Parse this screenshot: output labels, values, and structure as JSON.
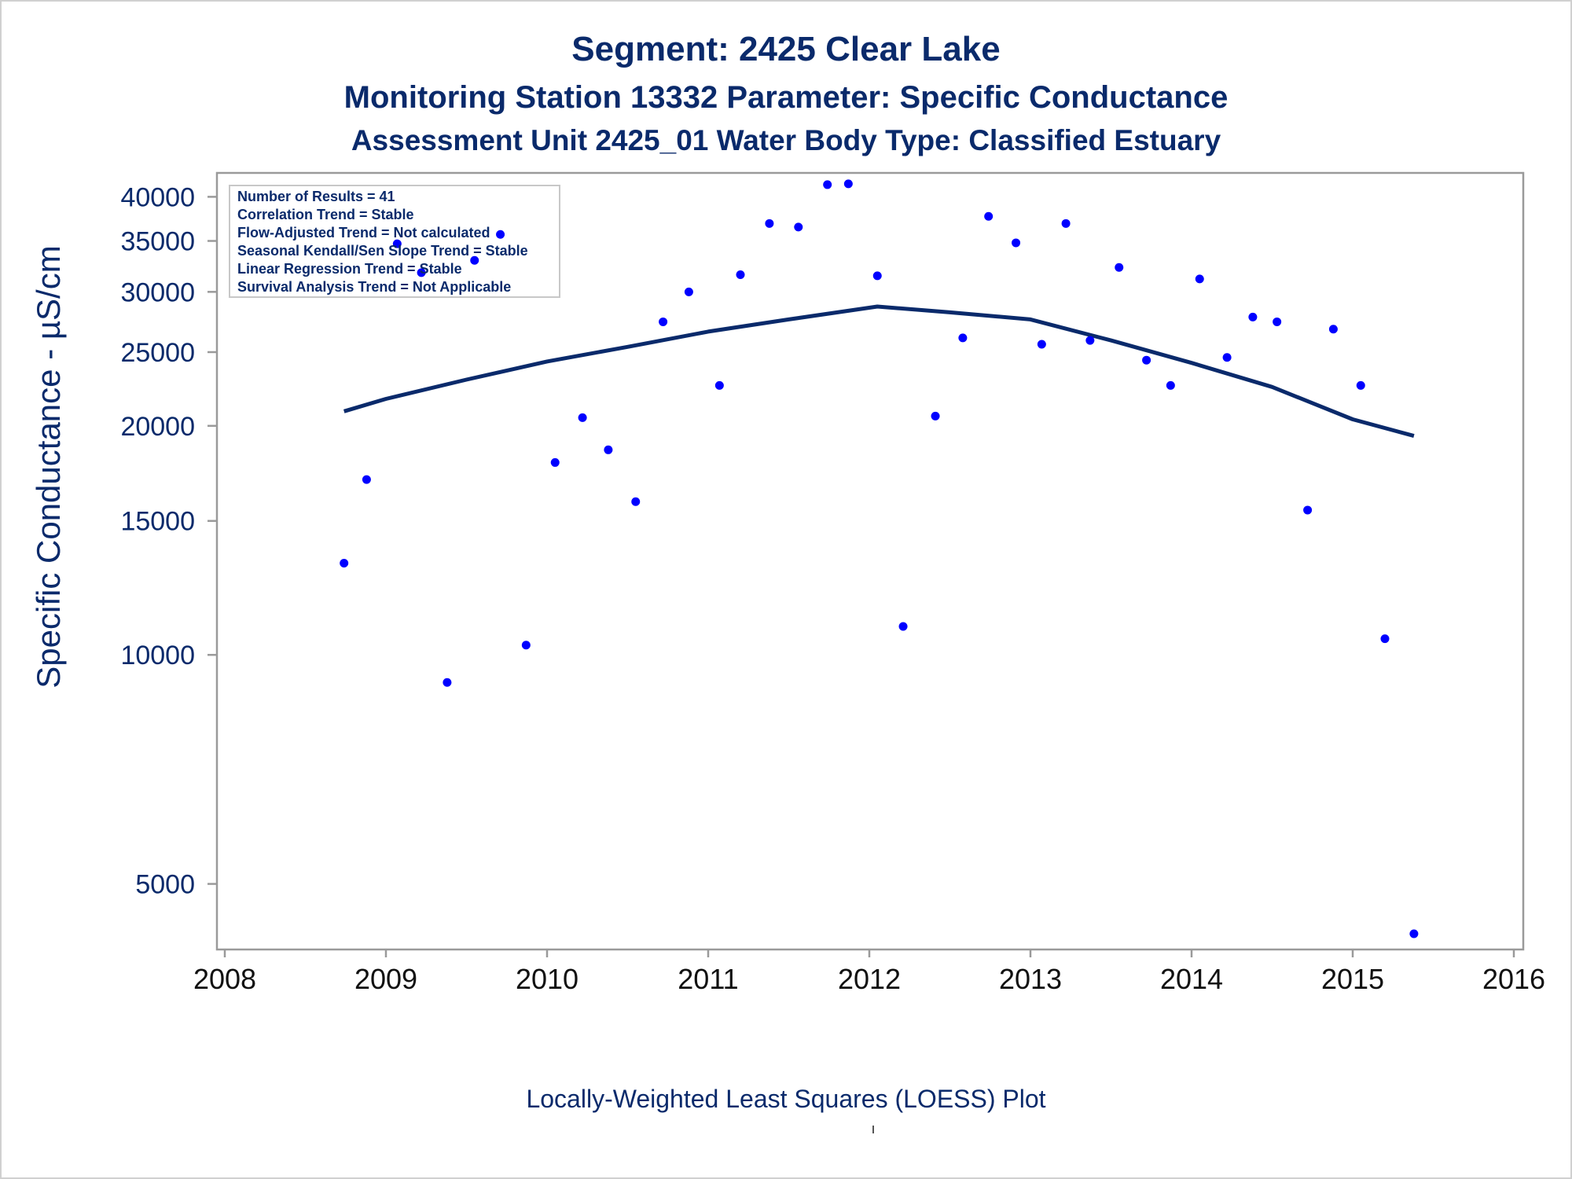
{
  "titles": {
    "line1": "Segment: 2425  Clear Lake",
    "line2": "Monitoring Station 13332 Parameter: Specific Conductance",
    "line3": "Assessment Unit 2425_01   Water Body Type: Classified Estuary"
  },
  "footnote": "Locally-Weighted Least Squares (LOESS) Plot",
  "colors": {
    "text": "#0a2a6b",
    "points": "#0000ff",
    "loess": "#0a2a6b",
    "axis": "#9a9a9a"
  },
  "chart_data": {
    "type": "scatter",
    "ylabel": "Specific Conductance -  µS/cm",
    "xlabel": "",
    "y_scale": "log",
    "xlim": [
      2008,
      2016
    ],
    "ylim": [
      4100,
      43000
    ],
    "x_ticks": [
      "2008",
      "2009",
      "2010",
      "2011",
      "2012",
      "2013",
      "2014",
      "2015",
      "2016"
    ],
    "y_ticks": [
      "5000",
      "10000",
      "15000",
      "20000",
      "25000",
      "30000",
      "35000",
      "40000"
    ],
    "grid": false,
    "legend_box": {
      "placement": "top-left",
      "lines": [
        "Number of Results = 41",
        "Correlation Trend = Stable",
        "Flow-Adjusted Trend = Not calculated",
        "Seasonal Kendall/Sen Slope Trend = Stable",
        "Linear Regression Trend = Stable",
        "Survival Analysis Trend = Not Applicable"
      ]
    },
    "series": [
      {
        "kind": "points",
        "x": [
          2008.74,
          2008.88,
          2009.07,
          2009.22,
          2009.38,
          2009.55,
          2009.71,
          2009.87,
          2010.05,
          2010.22,
          2010.38,
          2010.55,
          2010.72,
          2010.88,
          2011.07,
          2011.2,
          2011.38,
          2011.56,
          2011.74,
          2011.87,
          2012.05,
          2012.21,
          2012.41,
          2012.58,
          2012.74,
          2012.91,
          2013.07,
          2013.22,
          2013.37,
          2013.55,
          2013.72,
          2013.87,
          2014.05,
          2014.22,
          2014.38,
          2014.53,
          2014.72,
          2014.88,
          2015.05,
          2015.2,
          2015.38
        ],
        "y": [
          13200,
          17000,
          34700,
          31800,
          9200,
          33000,
          35700,
          10300,
          17900,
          20500,
          18600,
          15900,
          27400,
          30000,
          22600,
          31600,
          36900,
          36500,
          41500,
          41600,
          31500,
          10900,
          20600,
          26100,
          37700,
          34800,
          25600,
          36900,
          25900,
          32300,
          24400,
          22600,
          31200,
          24600,
          27800,
          27400,
          15500,
          26800,
          22600,
          10500,
          4300
        ]
      },
      {
        "kind": "loess",
        "x": [
          2008.74,
          2009.0,
          2009.5,
          2010.0,
          2010.5,
          2011.0,
          2011.5,
          2012.05,
          2012.5,
          2013.0,
          2013.5,
          2014.0,
          2014.5,
          2015.0,
          2015.38
        ],
        "y": [
          20900,
          21700,
          23000,
          24300,
          25400,
          26600,
          27600,
          28700,
          28200,
          27600,
          25900,
          24200,
          22500,
          20400,
          19400
        ]
      }
    ]
  }
}
